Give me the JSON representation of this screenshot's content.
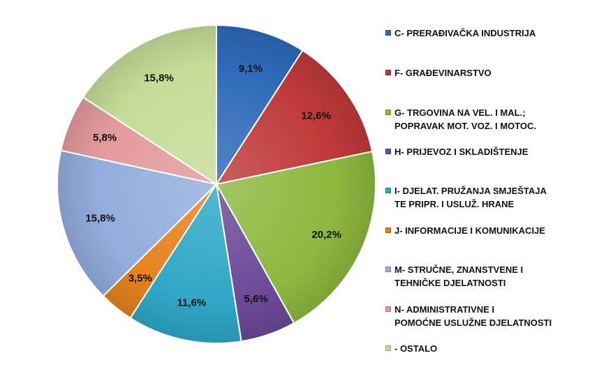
{
  "chart_data": {
    "type": "pie",
    "title": "",
    "legend_position": "right",
    "slices": [
      {
        "label": "C- PRERAĐIVAČKA INDUSTRIJA",
        "value": 9.1,
        "value_label": "9,1%",
        "color": "#2E6AB8"
      },
      {
        "label": "F- GRAĐEVINARSTVO",
        "value": 12.6,
        "value_label": "12,6%",
        "color": "#C0393A"
      },
      {
        "label": "G- TRGOVINA NA VEL. I MAL.;\nPOPRAVAK MOT. VOZ. I MOTOC.",
        "value": 20.2,
        "value_label": "20,2%",
        "color": "#8DB83E"
      },
      {
        "label": "H- PRIJEVOZ I SKLADIŠTENJE",
        "value": 5.6,
        "value_label": "5,6%",
        "color": "#6B4A97"
      },
      {
        "label": "I- DJELAT. PRUŽANJA SMJEŠTAJA\nTE PRIPR. I USLUŽ. HRANE",
        "value": 11.6,
        "value_label": "11,6%",
        "color": "#2FA7C6"
      },
      {
        "label": "J- INFORMACIJE I KOMUNIKACIJE",
        "value": 3.5,
        "value_label": "3,5%",
        "color": "#E6821E"
      },
      {
        "label": "M- STRUČNE, ZNANSTVENE I\nTEHNIČKE DJELATNOSTI",
        "value": 15.8,
        "value_label": "15,8%",
        "color": "#93AEDD"
      },
      {
        "label": "N- ADMINISTRATIVNE I\nPOMOĆNE USLUŽNE DJELATNOSTI",
        "value": 5.8,
        "value_label": "5,8%",
        "color": "#E49A9A"
      },
      {
        "label": " - OSTALO",
        "value": 15.8,
        "value_label": "15,8%",
        "color": "#C5DC97"
      }
    ]
  }
}
